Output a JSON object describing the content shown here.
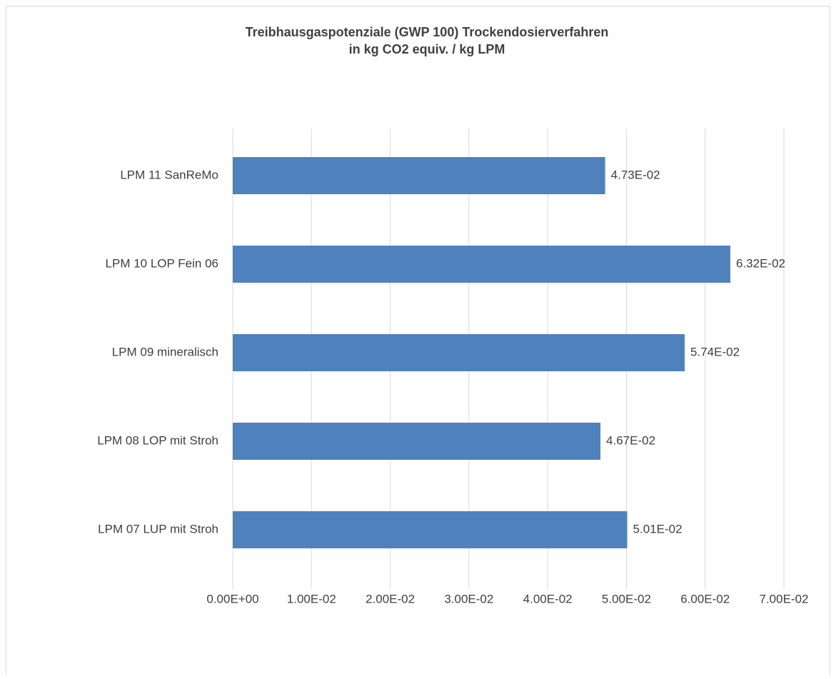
{
  "chart_data": {
    "type": "barh",
    "title": [
      "Treibhausgaspotenziale (GWP 100) Trockendosierverfahren",
      "in kg CO2 equiv. / kg LPM"
    ],
    "categories": [
      "LPM 11 SanReMo",
      "LPM 10 LOP Fein 06",
      "LPM 09 mineralisch",
      "LPM 08 LOP mit Stroh",
      "LPM 07 LUP mit Stroh"
    ],
    "values": [
      0.0473,
      0.0632,
      0.0574,
      0.0467,
      0.0501
    ],
    "value_labels": [
      "4.73E-02",
      "6.32E-02",
      "5.74E-02",
      "4.67E-02",
      "5.01E-02"
    ],
    "color": "#4f81bd",
    "xlim": [
      0,
      0.07
    ],
    "xticks": [
      {
        "value": 0,
        "label": "0.00E+00"
      },
      {
        "value": 0.01,
        "label": "1.00E-02"
      },
      {
        "value": 0.02,
        "label": "2.00E-02"
      },
      {
        "value": 0.03,
        "label": "3.00E-02"
      },
      {
        "value": 0.04,
        "label": "4.00E-02"
      },
      {
        "value": 0.05,
        "label": "5.00E-02"
      },
      {
        "value": 0.06,
        "label": "6.00E-02"
      },
      {
        "value": 0.07,
        "label": "7.00E-02"
      }
    ],
    "grid": true
  }
}
